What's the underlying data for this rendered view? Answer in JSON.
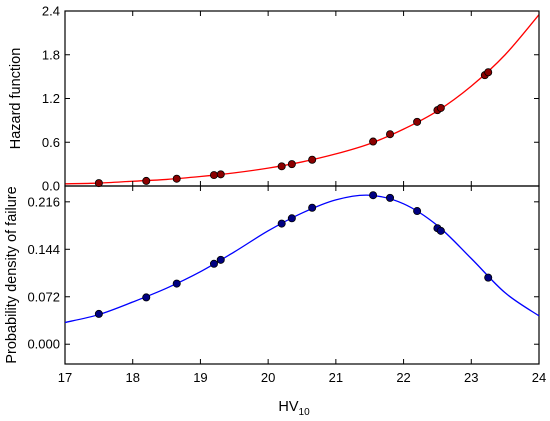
{
  "chart_data": [
    {
      "type": "line",
      "ylabel": "Hazard function",
      "ylim": [
        0.0,
        2.4
      ],
      "yticks": [
        "0.0",
        "0.6",
        "1.2",
        "1.8",
        "2.4"
      ],
      "xlim": [
        17,
        24
      ],
      "grid": false,
      "series": [
        {
          "kind": "curve",
          "color": "#ff0000",
          "x": [
            17.0,
            17.5,
            18.0,
            18.5,
            19.0,
            19.5,
            20.0,
            20.5,
            21.0,
            21.5,
            22.0,
            22.5,
            23.0,
            23.5,
            24.0
          ],
          "y": [
            0.03,
            0.04,
            0.065,
            0.09,
            0.13,
            0.18,
            0.245,
            0.33,
            0.44,
            0.58,
            0.78,
            1.03,
            1.37,
            1.8,
            2.35
          ]
        },
        {
          "kind": "points",
          "color": "#8b0000",
          "x": [
            17.5,
            18.2,
            18.65,
            19.2,
            19.3,
            20.2,
            20.35,
            20.65,
            21.55,
            21.8,
            22.2,
            22.5,
            22.55,
            23.2,
            23.25
          ],
          "y": [
            0.04,
            0.07,
            0.1,
            0.15,
            0.16,
            0.27,
            0.3,
            0.36,
            0.61,
            0.71,
            0.88,
            1.04,
            1.07,
            1.52,
            1.56
          ]
        }
      ]
    },
    {
      "type": "line",
      "ylabel": "Probability density of failure",
      "ylim": [
        -0.03,
        0.24
      ],
      "yticks": [
        "0.000",
        "0.072",
        "0.144",
        "0.216"
      ],
      "xlim": [
        17,
        24
      ],
      "xticks": [
        "17",
        "18",
        "19",
        "20",
        "21",
        "22",
        "23",
        "24"
      ],
      "xlabel": "HV",
      "xlabel_sub": "10",
      "grid": false,
      "series": [
        {
          "kind": "curve",
          "color": "#0000ff",
          "x": [
            17.0,
            17.5,
            18.0,
            18.5,
            19.0,
            19.5,
            20.0,
            20.5,
            21.0,
            21.5,
            22.0,
            22.5,
            23.0,
            23.5,
            24.0
          ],
          "y": [
            0.033,
            0.045,
            0.064,
            0.085,
            0.11,
            0.14,
            0.172,
            0.199,
            0.219,
            0.226,
            0.213,
            0.18,
            0.13,
            0.078,
            0.043
          ]
        },
        {
          "kind": "points",
          "color": "#000080",
          "x": [
            17.5,
            18.2,
            18.65,
            19.2,
            19.3,
            20.2,
            20.35,
            20.65,
            21.55,
            21.8,
            22.2,
            22.5,
            22.55,
            23.25
          ],
          "y": [
            0.046,
            0.071,
            0.092,
            0.122,
            0.128,
            0.183,
            0.191,
            0.207,
            0.226,
            0.222,
            0.202,
            0.176,
            0.172,
            0.101
          ]
        }
      ]
    }
  ]
}
